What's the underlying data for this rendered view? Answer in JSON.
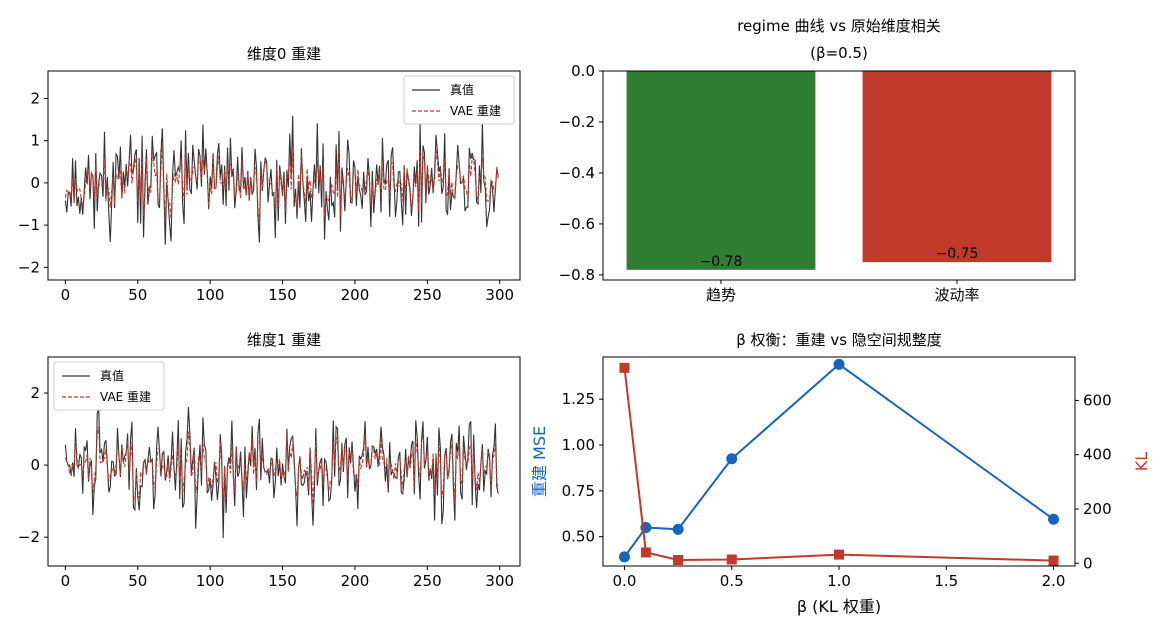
{
  "chart_data": [
    {
      "type": "line",
      "title": "维度0 重建",
      "xlabel": "",
      "ylabel": "",
      "xlim": [
        -12,
        314
      ],
      "ylim": [
        -2.3,
        2.65
      ],
      "xticks": [
        0,
        50,
        100,
        150,
        200,
        250,
        300
      ],
      "yticks": [
        -2,
        -1,
        0,
        1,
        2
      ],
      "grid": false,
      "legend": "top-right",
      "series": [
        {
          "name": "真值",
          "color": "#333333",
          "style": "solid",
          "seed": 11,
          "amp": 0.85,
          "x": [
            0,
            299
          ],
          "note_values": "noisy signal, 300 points, range about -2.1 to 2.3"
        },
        {
          "name": "VAE 重建",
          "color": "#c0392b",
          "style": "dashed",
          "seed": 11,
          "amp": 0.45,
          "x": [
            0,
            299
          ],
          "note_values": "smoothed reconstruction, range about -1.2 to 0.7"
        }
      ]
    },
    {
      "type": "bar",
      "title": "regime 曲线 vs 原始维度相关",
      "subtitle": "(β=0.5)",
      "categories": [
        "趋势",
        "波动率"
      ],
      "values": [
        -0.78,
        -0.75
      ],
      "value_labels": [
        "−0.78",
        "−0.75"
      ],
      "colors": [
        "#2e7d32",
        "#c0392b"
      ],
      "ylim": [
        -0.82,
        0.0
      ],
      "yticks": [
        "0.0",
        "−0.2",
        "−0.4",
        "−0.6",
        "−0.8"
      ],
      "ytick_values": [
        0.0,
        -0.2,
        -0.4,
        -0.6,
        -0.8
      ],
      "grid": false
    },
    {
      "type": "line",
      "title": "维度1 重建",
      "xlabel": "",
      "ylabel": "",
      "xlim": [
        -12,
        314
      ],
      "ylim": [
        -2.8,
        3.0
      ],
      "xticks": [
        0,
        50,
        100,
        150,
        200,
        250,
        300
      ],
      "yticks": [
        -2,
        0,
        2
      ],
      "grid": false,
      "legend": "top-left",
      "series": [
        {
          "name": "真值",
          "color": "#333333",
          "style": "solid",
          "seed": 29,
          "amp": 0.95,
          "x": [
            0,
            299
          ],
          "note_values": "noisy signal, 300 points, range about -2.5 to 2.8"
        },
        {
          "name": "VAE 重建",
          "color": "#c0392b",
          "style": "dashed",
          "seed": 29,
          "amp": 0.55,
          "x": [
            0,
            299
          ],
          "note_values": "smoothed reconstruction, range about -1.0 to 1.3"
        }
      ]
    },
    {
      "type": "line",
      "title": "β 权衡：重建 vs 隐空间规整度",
      "xlabel": "β (KL 权重)",
      "ylabel": "重建 MSE",
      "y2label": "KL",
      "xlim": [
        -0.1,
        2.1
      ],
      "ylim": [
        0.34,
        1.48
      ],
      "y2lim": [
        -10,
        760
      ],
      "xticks": [
        "0.0",
        "0.5",
        "1.0",
        "1.5",
        "2.0"
      ],
      "xtick_values": [
        0.0,
        0.5,
        1.0,
        1.5,
        2.0
      ],
      "yticks": [
        "0.50",
        "0.75",
        "1.00",
        "1.25"
      ],
      "ytick_values": [
        0.5,
        0.75,
        1.0,
        1.25
      ],
      "y2ticks": [
        "0",
        "200",
        "400",
        "600"
      ],
      "y2tick_values": [
        0,
        200,
        400,
        600
      ],
      "grid": false,
      "series": [
        {
          "name": "重建 MSE",
          "axis": "left",
          "color": "#1565c0",
          "marker": "circle",
          "x": [
            0.0,
            0.1,
            0.25,
            0.5,
            1.0,
            2.0
          ],
          "values": [
            0.39,
            0.55,
            0.54,
            0.925,
            1.44,
            0.595
          ]
        },
        {
          "name": "KL",
          "axis": "right",
          "color": "#c0392b",
          "marker": "square",
          "x": [
            0.0,
            0.1,
            0.25,
            0.5,
            1.0,
            2.0
          ],
          "values": [
            720,
            40,
            12,
            14,
            32,
            10
          ]
        }
      ]
    }
  ]
}
